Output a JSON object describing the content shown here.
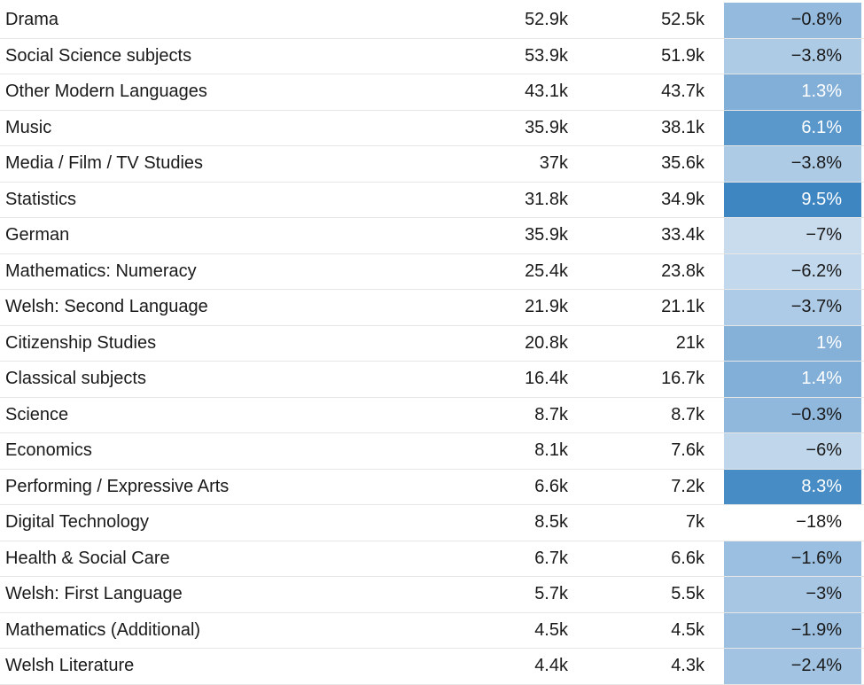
{
  "chart_data": {
    "type": "table",
    "color_scale": {
      "low": "#c9dcee",
      "mid": "#8db6dc",
      "high": "#3d86c1",
      "none": "#ffffff",
      "light_text": "#ffffff",
      "dark_text": "#1a1a1a"
    },
    "rows": [
      {
        "subject": "Drama",
        "v1": "52.9k",
        "v2": "52.5k",
        "change": "-0.8%",
        "change_value": -0.8
      },
      {
        "subject": "Social Science subjects",
        "v1": "53.9k",
        "v2": "51.9k",
        "change": "-3.8%",
        "change_value": -3.8
      },
      {
        "subject": "Other Modern Languages",
        "v1": "43.1k",
        "v2": "43.7k",
        "change": "1.3%",
        "change_value": 1.3
      },
      {
        "subject": "Music",
        "v1": "35.9k",
        "v2": "38.1k",
        "change": "6.1%",
        "change_value": 6.1
      },
      {
        "subject": "Media / Film / TV Studies",
        "v1": "37k",
        "v2": "35.6k",
        "change": "-3.8%",
        "change_value": -3.8
      },
      {
        "subject": "Statistics",
        "v1": "31.8k",
        "v2": "34.9k",
        "change": "9.5%",
        "change_value": 9.5
      },
      {
        "subject": "German",
        "v1": "35.9k",
        "v2": "33.4k",
        "change": "-7%",
        "change_value": -7
      },
      {
        "subject": "Mathematics: Numeracy",
        "v1": "25.4k",
        "v2": "23.8k",
        "change": "-6.2%",
        "change_value": -6.2
      },
      {
        "subject": "Welsh: Second Language",
        "v1": "21.9k",
        "v2": "21.1k",
        "change": "-3.7%",
        "change_value": -3.7
      },
      {
        "subject": "Citizenship Studies",
        "v1": "20.8k",
        "v2": "21k",
        "change": "1%",
        "change_value": 1
      },
      {
        "subject": "Classical subjects",
        "v1": "16.4k",
        "v2": "16.7k",
        "change": "1.4%",
        "change_value": 1.4
      },
      {
        "subject": "Science",
        "v1": "8.7k",
        "v2": "8.7k",
        "change": "-0.3%",
        "change_value": -0.3
      },
      {
        "subject": "Economics",
        "v1": "8.1k",
        "v2": "7.6k",
        "change": "-6%",
        "change_value": -6
      },
      {
        "subject": "Performing / Expressive Arts",
        "v1": "6.6k",
        "v2": "7.2k",
        "change": "8.3%",
        "change_value": 8.3
      },
      {
        "subject": "Digital Technology",
        "v1": "8.5k",
        "v2": "7k",
        "change": "-18%",
        "change_value": -18
      },
      {
        "subject": "Health & Social Care",
        "v1": "6.7k",
        "v2": "6.6k",
        "change": "-1.6%",
        "change_value": -1.6
      },
      {
        "subject": "Welsh: First Language",
        "v1": "5.7k",
        "v2": "5.5k",
        "change": "-3%",
        "change_value": -3
      },
      {
        "subject": "Mathematics (Additional)",
        "v1": "4.5k",
        "v2": "4.5k",
        "change": "-1.9%",
        "change_value": -1.9
      },
      {
        "subject": "Welsh Literature",
        "v1": "4.4k",
        "v2": "4.3k",
        "change": "-2.4%",
        "change_value": -2.4
      }
    ]
  }
}
